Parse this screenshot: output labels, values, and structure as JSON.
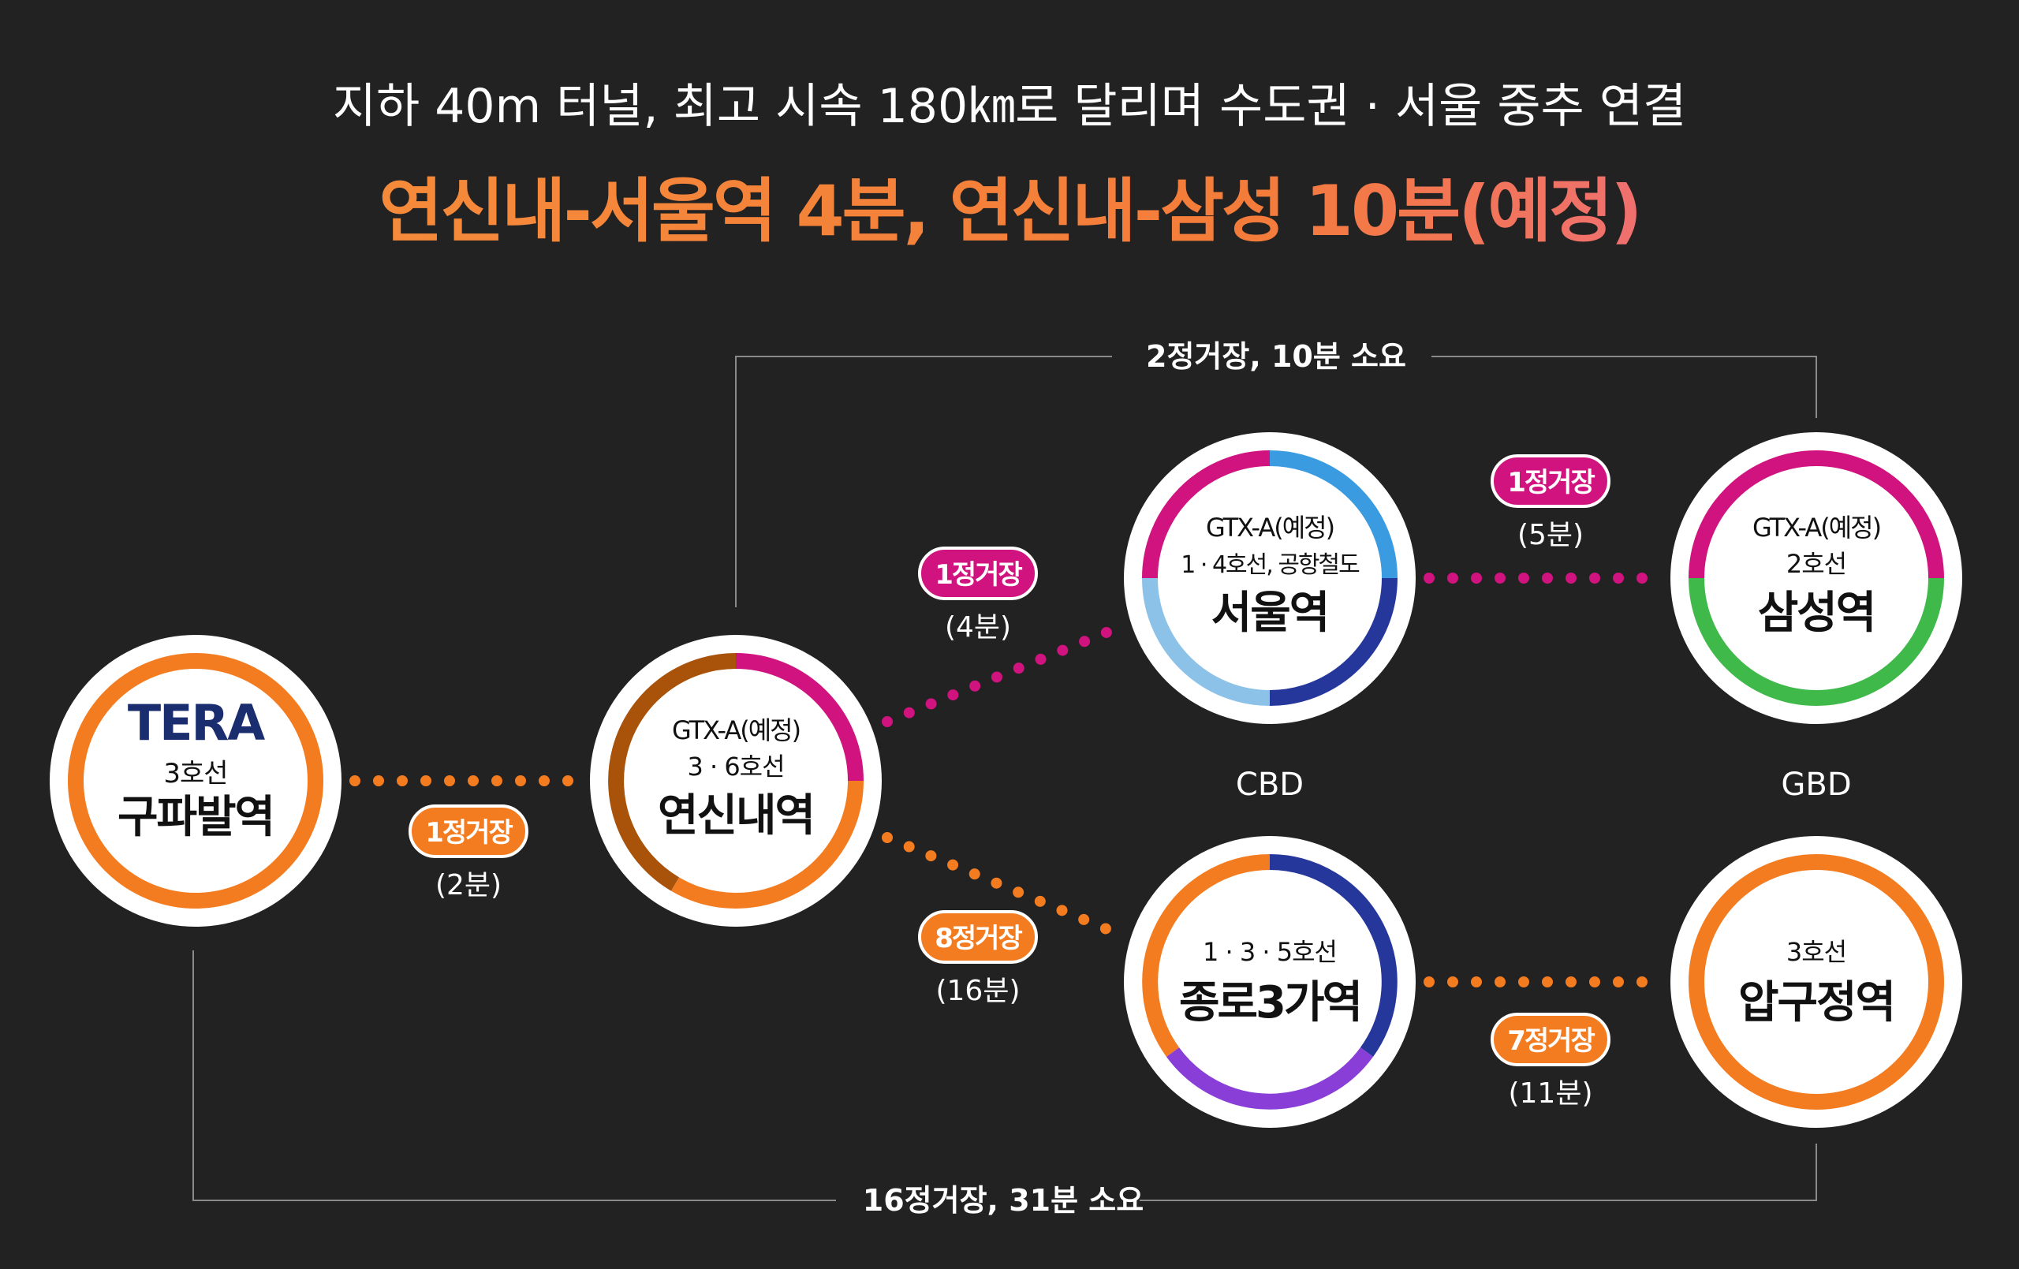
{
  "header": {
    "subtitle": "지하 40m 터널, 최고 시속 180㎞로 달리며 수도권 · 서울 중추 연결",
    "title": "연신내-서울역 4분, 연신내-삼성 10분(예정)"
  },
  "colors": {
    "background": "#232222",
    "orange": "#f47c20",
    "magenta": "#d0137f",
    "brown": "#a8520a",
    "blue_light": "#3a9be0",
    "blue_pale": "#8cc2e8",
    "navy": "#25379a",
    "green": "#3fb94a",
    "purple": "#8a3ed8",
    "logo_navy": "#1a2d6e",
    "title_gradient_start": "#f58a3a",
    "title_gradient_end": "#f07070"
  },
  "stations": {
    "gupabal": {
      "logo": "TERA",
      "line": "3호선",
      "name": "구파발역"
    },
    "yeonsinnae": {
      "lines_1": "GTX-A(예정)",
      "lines_2": "3 · 6호선",
      "name": "연신내역"
    },
    "seoul": {
      "lines_1": "GTX-A(예정)",
      "lines_2": "1 · 4호선, 공항철도",
      "name": "서울역"
    },
    "samsung": {
      "lines_1": "GTX-A(예정)",
      "lines_2": "2호선",
      "name": "삼성역"
    },
    "jongno3ga": {
      "lines_1": "1 · 3 · 5호선",
      "name": "종로3가역"
    },
    "apgujeong": {
      "lines_1": "3호선",
      "name": "압구정역"
    }
  },
  "connections": {
    "gupabal_yeonsinnae": {
      "badge": "1정거장",
      "time": "(2분)"
    },
    "yeonsinnae_seoul": {
      "badge": "1정거장",
      "time": "(4분)"
    },
    "seoul_samsung": {
      "badge": "1정거장",
      "time": "(5분)"
    },
    "yeonsinnae_jongno": {
      "badge": "8정거장",
      "time": "(16분)"
    },
    "jongno_apgujeong": {
      "badge": "7정거장",
      "time": "(11분)"
    }
  },
  "brackets": {
    "top": "2정거장, 10분 소요",
    "bottom": "16정거장, 31분 소요"
  },
  "districts": {
    "cbd": "CBD",
    "gbd": "GBD"
  }
}
